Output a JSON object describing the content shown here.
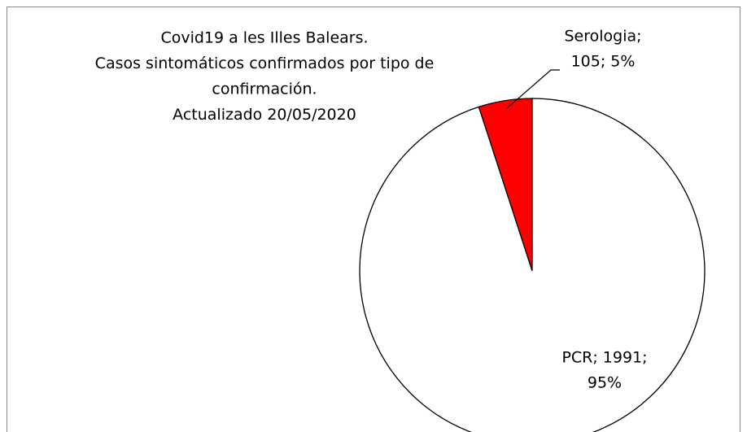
{
  "chart_data": {
    "type": "pie",
    "title": [
      "Covid19 a les Illes Balears.",
      "Casos sintomáticos  confirmados por tipo de",
      "confirmación.",
      "Actualizado  20/05/2020"
    ],
    "categories": [
      "Serologia",
      "PCR"
    ],
    "values": [
      105,
      1991
    ],
    "value_labels": [
      [
        "Serologia;",
        "105; 5%"
      ],
      [
        "PCR; 1991;",
        "95%"
      ]
    ],
    "colors": [
      "#ff0000",
      "#ffffff"
    ]
  }
}
